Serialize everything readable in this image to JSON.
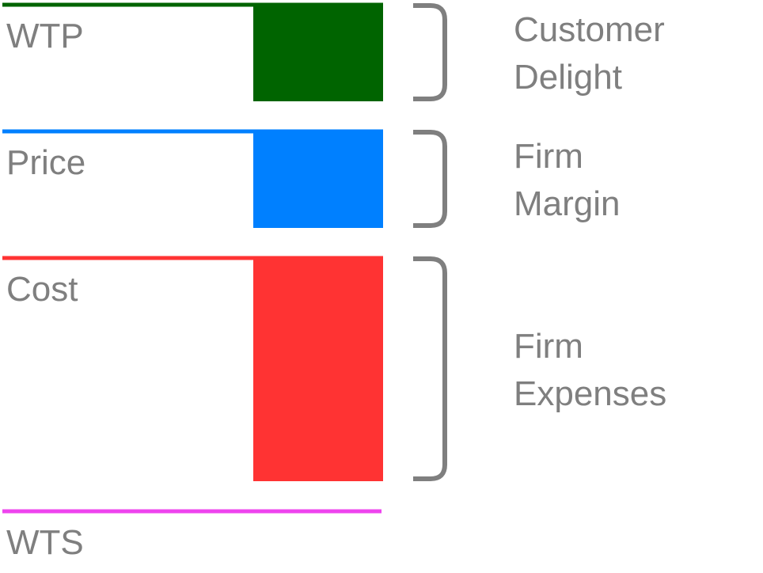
{
  "levels": [
    {
      "key": "wtp",
      "label": "WTP",
      "color": "#006400"
    },
    {
      "key": "price",
      "label": "Price",
      "color": "#0080ff"
    },
    {
      "key": "cost",
      "label": "Cost",
      "color": "#ff3333"
    },
    {
      "key": "wts",
      "label": "WTS",
      "color": "#ee44ee"
    }
  ],
  "segments": [
    {
      "key": "customer-delight",
      "line1": "Customer",
      "line2": "Delight",
      "color": "#006400"
    },
    {
      "key": "firm-margin",
      "line1": "Firm",
      "line2": "Margin",
      "color": "#0080ff"
    },
    {
      "key": "firm-expenses",
      "line1": "Firm",
      "line2": "Expenses",
      "color": "#ff3333"
    }
  ],
  "bracket_color": "#7f7f7f",
  "text_color": "#7f7f7f"
}
